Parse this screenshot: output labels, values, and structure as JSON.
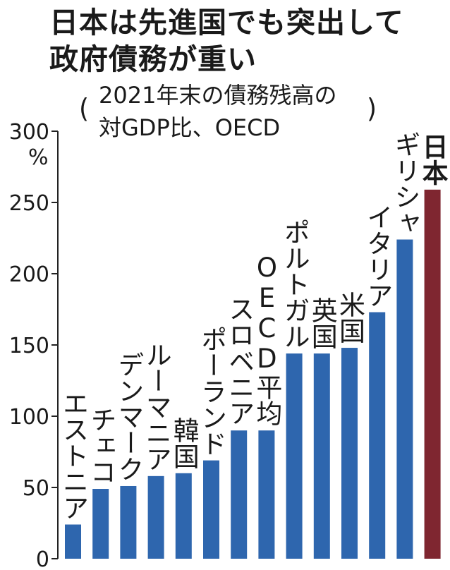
{
  "chart_data": {
    "type": "bar",
    "title": "日本は先進国でも突出して政府債務が重い",
    "title_lines": [
      "日本は先進国でも突出して",
      "政府債務が重い"
    ],
    "subtitle_lines": [
      "2021年末の債務残高の",
      "対GDP比、OECD"
    ],
    "paren_left": "(",
    "paren_right": ")",
    "ylabel": "%",
    "ylim": [
      0,
      300
    ],
    "yticks": [
      0,
      50,
      100,
      150,
      200,
      250,
      300
    ],
    "ytick_labels": [
      "0",
      "50",
      "100",
      "150",
      "200",
      "250",
      "300"
    ],
    "grid": false,
    "categories": [
      "エストニア",
      "チェコ",
      "デンマーク",
      "ルーマニア",
      "韓国",
      "ポーランド",
      "スロベニア",
      "OECD平均",
      "ポルトガル",
      "英国",
      "米国",
      "イタリア",
      "ギリシャ",
      "日本"
    ],
    "values": [
      24,
      49,
      51,
      58,
      60,
      69,
      90,
      90,
      144,
      144,
      148,
      173,
      224,
      259
    ],
    "highlight_category": "日本"
  },
  "colors": {
    "bar": "#2e66ae",
    "highlight": "#7f2630",
    "axis": "#222222",
    "text": "#1a1a1a"
  }
}
